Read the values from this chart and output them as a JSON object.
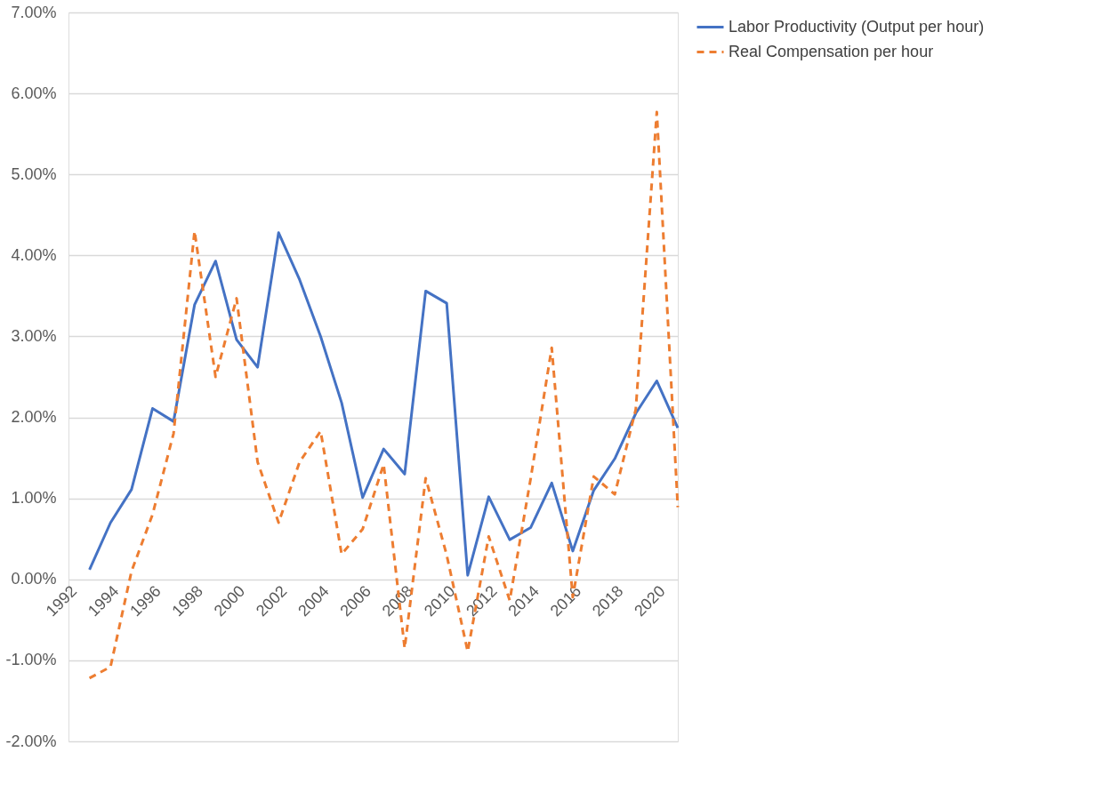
{
  "chart_data": {
    "type": "line",
    "x": [
      1993,
      1994,
      1995,
      1996,
      1997,
      1998,
      1999,
      2000,
      2001,
      2002,
      2003,
      2004,
      2005,
      2006,
      2007,
      2008,
      2009,
      2010,
      2011,
      2012,
      2013,
      2014,
      2015,
      2016,
      2017,
      2018,
      2019,
      2020,
      2021
    ],
    "series": [
      {
        "name": "Labor Productivity (Output per hour)",
        "color": "#4472c4",
        "line_style": "solid",
        "values": [
          0.12,
          0.7,
          1.11,
          2.11,
          1.95,
          3.39,
          3.93,
          2.96,
          2.62,
          4.28,
          3.7,
          3.0,
          2.18,
          1.01,
          1.61,
          1.3,
          3.56,
          3.41,
          0.05,
          1.02,
          0.49,
          0.64,
          1.19,
          0.35,
          1.1,
          1.49,
          2.05,
          2.45,
          1.87
        ]
      },
      {
        "name": "Real Compensation per hour",
        "color": "#ed7d31",
        "line_style": "dashed",
        "values": [
          -1.22,
          -1.08,
          0.1,
          0.8,
          1.8,
          4.3,
          2.5,
          3.47,
          1.45,
          0.7,
          1.45,
          1.83,
          0.31,
          0.62,
          1.42,
          -0.85,
          1.25,
          0.3,
          -0.89,
          0.53,
          -0.26,
          1.25,
          2.86,
          -0.22,
          1.27,
          1.05,
          2.1,
          5.77,
          0.89
        ]
      }
    ],
    "xlim": [
      1992,
      2021
    ],
    "xticks": [
      1992,
      1994,
      1996,
      1998,
      2000,
      2002,
      2004,
      2006,
      2008,
      2010,
      2012,
      2014,
      2016,
      2018,
      2020
    ],
    "ylim": [
      -2,
      7
    ],
    "yticks": [
      {
        "value": -2,
        "label": "-2.00%"
      },
      {
        "value": -1,
        "label": "-1.00%"
      },
      {
        "value": 0,
        "label": "0.00%"
      },
      {
        "value": 1,
        "label": "1.00%"
      },
      {
        "value": 2,
        "label": "2.00%"
      },
      {
        "value": 3,
        "label": "3.00%"
      },
      {
        "value": 4,
        "label": "4.00%"
      },
      {
        "value": 5,
        "label": "5.00%"
      },
      {
        "value": 6,
        "label": "6.00%"
      },
      {
        "value": 7,
        "label": "7.00%"
      }
    ],
    "grid": "y",
    "legend": "right",
    "marker": "none"
  }
}
